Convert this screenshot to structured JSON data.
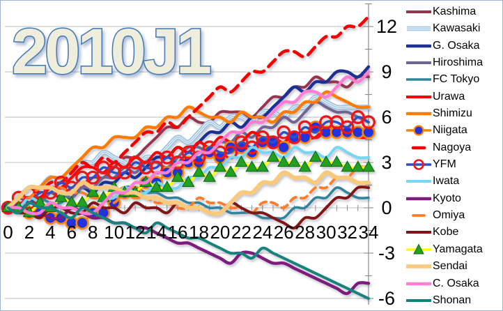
{
  "title": "2010J1",
  "colors": {
    "background": "#FFFFFF",
    "gridline": "#C2C2C2",
    "axis": "#8A8A8A",
    "tick_text": "#000000",
    "frame_border": "#9DB4CF",
    "title_fill": "#EFEDDC",
    "title_stroke": "#4A7CB5"
  },
  "chart_data": {
    "type": "line",
    "title": "2010J1",
    "xlabel": "",
    "ylabel": "",
    "x_start": 0,
    "x_step": 1,
    "x_range": [
      0,
      34
    ],
    "y_range": [
      -6,
      12
    ],
    "x_ticks": [
      0,
      2,
      4,
      6,
      8,
      10,
      12,
      14,
      16,
      18,
      20,
      22,
      24,
      26,
      28,
      30,
      32,
      34
    ],
    "y_ticks": [
      12,
      9,
      6,
      3,
      0,
      -3,
      -6
    ],
    "grid": "horizontal",
    "legend_position": "right",
    "value_encoding": "plot_y = y_times_3 / 3 ; one value per matchday 0..34",
    "series": [
      {
        "name": "Kashima",
        "color": "#96344F",
        "width": 4,
        "style": "solid",
        "y_times_3": [
          0,
          2,
          1,
          1,
          3,
          2,
          4,
          4,
          6,
          6,
          8,
          10,
          10,
          12,
          14,
          16,
          16,
          18,
          17,
          17,
          19,
          19,
          19,
          18,
          20,
          22,
          22,
          24,
          24,
          26,
          25,
          25,
          24,
          26,
          26
        ]
      },
      {
        "name": "Kawasaki",
        "color": "#9CC2E5",
        "width": 7,
        "style": "striped",
        "y_times_3": [
          0,
          2,
          4,
          4,
          6,
          5,
          7,
          9,
          9,
          11,
          10,
          9,
          8,
          10,
          10,
          12,
          14,
          13,
          15,
          17,
          16,
          18,
          18,
          17,
          19,
          19,
          18,
          20,
          20,
          22,
          21,
          20,
          20,
          20,
          20
        ]
      },
      {
        "name": "G. Osaka",
        "color": "#1F3093",
        "width": 4.4,
        "style": "solid",
        "y_times_3": [
          0,
          -1,
          1,
          1,
          0,
          2,
          2,
          4,
          3,
          5,
          5,
          7,
          6,
          8,
          10,
          10,
          12,
          11,
          13,
          15,
          15,
          17,
          16,
          18,
          18,
          20,
          22,
          24,
          23,
          25,
          25,
          27,
          27,
          26,
          28
        ]
      },
      {
        "name": "Hiroshima",
        "color": "#6F6593",
        "width": 4,
        "style": "solid",
        "y_times_3": [
          0,
          0,
          2,
          1,
          3,
          3,
          2,
          4,
          4,
          6,
          6,
          8,
          7,
          9,
          9,
          8,
          10,
          12,
          12,
          11,
          13,
          13,
          15,
          14,
          16,
          16,
          18,
          17,
          19,
          21,
          20,
          19,
          19,
          18,
          17
        ]
      },
      {
        "name": "FC Tokyo",
        "color": "#31849B",
        "width": 3.6,
        "style": "solid",
        "y_times_3": [
          0,
          0,
          2,
          2,
          1,
          1,
          3,
          3,
          2,
          2,
          2,
          4,
          4,
          3,
          3,
          2,
          2,
          1,
          1,
          0,
          0,
          -1,
          -1,
          -1,
          -2,
          -2,
          -2,
          0,
          0,
          2,
          2,
          4,
          3,
          2,
          2
        ]
      },
      {
        "name": "Urawa",
        "color": "#FE0000",
        "width": 4,
        "style": "solid",
        "y_times_3": [
          0,
          2,
          2,
          2,
          4,
          4,
          6,
          8,
          8,
          7,
          9,
          8,
          10,
          9,
          11,
          10,
          12,
          11,
          13,
          12,
          14,
          13,
          13,
          15,
          14,
          14,
          13,
          15,
          14,
          14,
          16,
          15,
          15,
          14,
          14
        ]
      },
      {
        "name": "Shimizu",
        "color": "#FF7C00",
        "width": 4.4,
        "style": "solid",
        "y_times_3": [
          0,
          2,
          2,
          4,
          6,
          6,
          8,
          10,
          12,
          12,
          14,
          14,
          14,
          16,
          16,
          18,
          18,
          20,
          19,
          18,
          18,
          17,
          19,
          18,
          18,
          17,
          19,
          19,
          21,
          21,
          23,
          22,
          21,
          20,
          20
        ]
      },
      {
        "name": "Niigata",
        "color": "#FF8400",
        "width": 3.4,
        "style": "solid",
        "marker": {
          "shape": "circle",
          "fill": "#2233DD",
          "stroke": "#FF8400"
        },
        "y_times_3": [
          0,
          0,
          -1,
          -1,
          -2,
          -2,
          -3,
          -3,
          -1,
          -1,
          1,
          3,
          3,
          5,
          5,
          7,
          7,
          9,
          9,
          11,
          10,
          12,
          12,
          11,
          13,
          13,
          12,
          14,
          14,
          16,
          15,
          15,
          15,
          15,
          15
        ]
      },
      {
        "name": "Nagoya",
        "color": "#F40000",
        "width": 4.6,
        "style": "dashed",
        "dash": "14 9",
        "y_times_3": [
          0,
          2,
          4,
          3,
          5,
          5,
          7,
          9,
          8,
          10,
          9,
          11,
          13,
          15,
          15,
          17,
          16,
          18,
          20,
          22,
          24,
          23,
          25,
          27,
          27,
          29,
          31,
          31,
          30,
          32,
          34,
          34,
          36,
          36,
          38
        ]
      },
      {
        "name": "YFM",
        "color": "#2B50C8",
        "width": 3.4,
        "style": "solid",
        "marker": {
          "shape": "ring",
          "stroke": "#F01414"
        },
        "y_times_3": [
          0,
          2,
          1,
          3,
          3,
          5,
          4,
          6,
          6,
          8,
          7,
          7,
          9,
          8,
          8,
          10,
          9,
          11,
          10,
          12,
          11,
          11,
          13,
          12,
          14,
          13,
          15,
          14,
          16,
          15,
          17,
          17,
          16,
          18,
          17
        ]
      },
      {
        "name": "Iwata",
        "color": "#76D6F4",
        "width": 4,
        "style": "solid",
        "y_times_3": [
          0,
          0,
          2,
          1,
          0,
          2,
          1,
          1,
          3,
          2,
          2,
          4,
          3,
          3,
          5,
          4,
          4,
          6,
          6,
          8,
          8,
          10,
          10,
          12,
          11,
          11,
          10,
          12,
          11,
          11,
          10,
          12,
          11,
          10,
          10
        ]
      },
      {
        "name": "Kyoto",
        "color": "#7D1C7C",
        "width": 4.4,
        "style": "solid",
        "y_times_3": [
          0,
          0,
          -1,
          -1,
          -2,
          -2,
          0,
          -1,
          -2,
          -2,
          -3,
          -3,
          -4,
          -4,
          -5,
          -6,
          -7,
          -7,
          -8,
          -9,
          -10,
          -11,
          -9,
          -9,
          -10,
          -11,
          -11,
          -12,
          -13,
          -14,
          -15,
          -16,
          -17,
          -15,
          -15
        ]
      },
      {
        "name": "Omiya",
        "color": "#FF7D2A",
        "width": 3.8,
        "style": "dashed",
        "dash": "10 7",
        "y_times_3": [
          0,
          2,
          2,
          4,
          4,
          4,
          3,
          3,
          2,
          2,
          1,
          3,
          2,
          2,
          1,
          1,
          0,
          0,
          2,
          1,
          1,
          0,
          0,
          -1,
          1,
          1,
          0,
          2,
          2,
          4,
          4,
          6,
          6,
          8,
          8
        ]
      },
      {
        "name": "Kobe",
        "color": "#801417",
        "width": 4,
        "style": "solid",
        "y_times_3": [
          0,
          -1,
          -1,
          -2,
          0,
          0,
          -1,
          -1,
          1,
          0,
          0,
          -1,
          1,
          0,
          0,
          -1,
          1,
          0,
          0,
          -1,
          -1,
          1,
          0,
          -1,
          -1,
          -2,
          -3,
          -4,
          -2,
          -2,
          0,
          2,
          2,
          4,
          4
        ]
      },
      {
        "name": "Yamagata",
        "color": "#FFFF00",
        "width": 3.6,
        "style": "solid",
        "marker": {
          "shape": "triangle",
          "fill": "#22A022",
          "stroke": "#0F6A0F"
        },
        "y_times_3": [
          0,
          0,
          -1,
          1,
          0,
          2,
          1,
          1,
          3,
          2,
          4,
          3,
          3,
          5,
          4,
          4,
          6,
          5,
          7,
          6,
          8,
          7,
          9,
          8,
          8,
          10,
          9,
          9,
          8,
          10,
          9,
          9,
          8,
          8,
          8
        ]
      },
      {
        "name": "Sendai",
        "color": "#F9C97C",
        "width": 6,
        "style": "solid",
        "y_times_3": [
          0,
          2,
          4,
          4,
          4,
          3,
          3,
          5,
          4,
          4,
          4,
          3,
          3,
          2,
          2,
          1,
          1,
          0,
          0,
          -1,
          -1,
          1,
          3,
          3,
          5,
          5,
          7,
          6,
          6,
          5,
          7,
          6,
          6,
          5,
          5
        ]
      },
      {
        "name": "C. Osaka",
        "color": "#FF7DD2",
        "width": 4.4,
        "style": "solid",
        "y_times_3": [
          0,
          0,
          -1,
          -1,
          1,
          0,
          0,
          -1,
          -1,
          1,
          3,
          3,
          5,
          5,
          7,
          7,
          9,
          9,
          11,
          11,
          13,
          15,
          15,
          17,
          17,
          19,
          21,
          21,
          23,
          23,
          22,
          24,
          26,
          25,
          27
        ]
      },
      {
        "name": "Shonan",
        "color": "#12837B",
        "width": 4,
        "style": "solid",
        "y_times_3": [
          0,
          -1,
          1,
          0,
          0,
          -1,
          -2,
          0,
          -1,
          -2,
          -3,
          -3,
          -4,
          -5,
          -3,
          -4,
          -5,
          -6,
          -6,
          -7,
          -8,
          -9,
          -9,
          -10,
          -8,
          -9,
          -10,
          -11,
          -12,
          -13,
          -14,
          -15,
          -16,
          -17,
          -18
        ]
      }
    ]
  }
}
